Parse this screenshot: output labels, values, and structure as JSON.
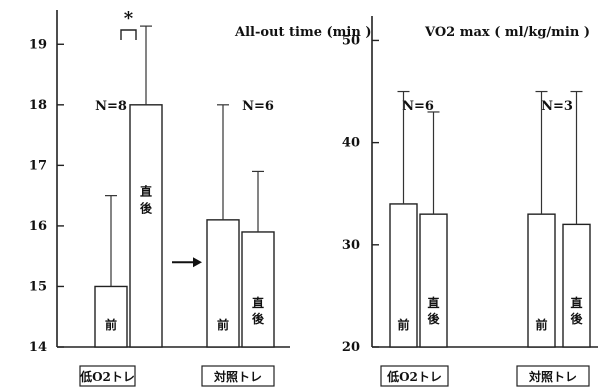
{
  "chart_data": [
    {
      "type": "bar",
      "title": "All-out time (min )",
      "ylim": [
        14,
        19.5
      ],
      "y_ticks": [
        "14",
        "15",
        "16",
        "17",
        "18",
        "19"
      ],
      "categories": [
        "低O2トレ",
        "対照トレ"
      ],
      "group_n": [
        "N=8",
        "N=6"
      ],
      "bar_labels": [
        "前",
        "直\n後"
      ],
      "series": [
        {
          "values": [
            15.0,
            16.1
          ],
          "error": [
            1.5,
            1.9
          ]
        },
        {
          "values": [
            18.0,
            15.9
          ],
          "error": [
            1.3,
            1.0
          ]
        }
      ],
      "significance": "*",
      "arrow": "→"
    },
    {
      "type": "bar",
      "title": "VO2 max ( ml/kg/min )",
      "ylim": [
        20,
        52
      ],
      "y_ticks": [
        "20",
        "30",
        "40",
        "50"
      ],
      "categories": [
        "低O2トレ",
        "対照トレ"
      ],
      "group_n": [
        "N=6",
        "N=3"
      ],
      "bar_labels": [
        "前",
        "直\n後"
      ],
      "series": [
        {
          "values": [
            34,
            33
          ],
          "error": [
            11,
            12
          ]
        },
        {
          "values": [
            33,
            32
          ],
          "error": [
            10,
            13
          ]
        }
      ]
    }
  ]
}
